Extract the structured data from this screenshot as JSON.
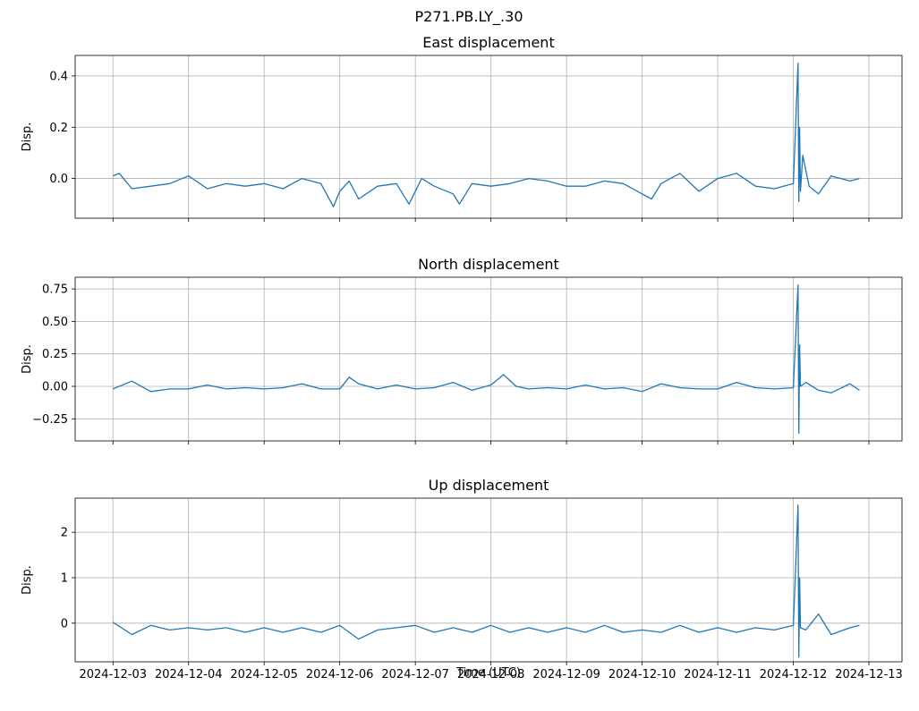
{
  "figure": {
    "title": "P271.PB.LY_.30",
    "xlabel": "Time (UTC)"
  },
  "colors": {
    "series": "#1f77b4",
    "grid": "#b0b0b0",
    "axis": "#000000"
  },
  "x_ticks": [
    "2024-12-03",
    "2024-12-04",
    "2024-12-05",
    "2024-12-06",
    "2024-12-07",
    "2024-12-08",
    "2024-12-09",
    "2024-12-10",
    "2024-12-11",
    "2024-12-12",
    "2024-12-13"
  ],
  "chart_data": [
    {
      "type": "line",
      "title": "East displacement",
      "ylabel": "Disp.",
      "xlim": [
        "2024-12-02T12:00",
        "2024-12-13T10:30"
      ],
      "ylim": [
        -0.155,
        0.48
      ],
      "y_ticks": [
        0.0,
        0.2,
        0.4
      ],
      "y_tick_labels": [
        "0.0",
        "0.2",
        "0.4"
      ],
      "grid": true,
      "series": [
        {
          "x": [
            "2024-12-03T00:00",
            "2024-12-03T02:00",
            "2024-12-03T06:00",
            "2024-12-03T12:00",
            "2024-12-03T18:00",
            "2024-12-04T00:00",
            "2024-12-04T06:00",
            "2024-12-04T12:00",
            "2024-12-04T18:00",
            "2024-12-05T00:00",
            "2024-12-05T06:00",
            "2024-12-05T12:00",
            "2024-12-05T18:00",
            "2024-12-05T22:00",
            "2024-12-06T00:00",
            "2024-12-06T03:00",
            "2024-12-06T06:00",
            "2024-12-06T12:00",
            "2024-12-06T18:00",
            "2024-12-06T22:00",
            "2024-12-07T02:00",
            "2024-12-07T06:00",
            "2024-12-07T12:00",
            "2024-12-07T14:00",
            "2024-12-07T18:00",
            "2024-12-08T00:00",
            "2024-12-08T06:00",
            "2024-12-08T12:00",
            "2024-12-08T18:00",
            "2024-12-09T00:00",
            "2024-12-09T06:00",
            "2024-12-09T12:00",
            "2024-12-09T18:00",
            "2024-12-10T00:00",
            "2024-12-10T03:00",
            "2024-12-10T06:00",
            "2024-12-10T12:00",
            "2024-12-10T18:00",
            "2024-12-11T00:00",
            "2024-12-11T06:00",
            "2024-12-11T12:00",
            "2024-12-11T18:00",
            "2024-12-12T00:00",
            "2024-12-12T01:30",
            "2024-12-12T01:45",
            "2024-12-12T02:00",
            "2024-12-12T02:15",
            "2024-12-12T03:00",
            "2024-12-12T05:00",
            "2024-12-12T08:00",
            "2024-12-12T12:00",
            "2024-12-12T18:00",
            "2024-12-12T21:00"
          ],
          "y": [
            0.01,
            0.02,
            -0.04,
            -0.03,
            -0.02,
            0.01,
            -0.04,
            -0.02,
            -0.03,
            -0.02,
            -0.04,
            0.0,
            -0.02,
            -0.11,
            -0.05,
            -0.01,
            -0.08,
            -0.03,
            -0.02,
            -0.1,
            0.0,
            -0.03,
            -0.06,
            -0.1,
            -0.02,
            -0.03,
            -0.02,
            0.0,
            -0.01,
            -0.03,
            -0.03,
            -0.01,
            -0.02,
            -0.06,
            -0.08,
            -0.02,
            0.02,
            -0.05,
            0.0,
            0.02,
            -0.03,
            -0.04,
            -0.02,
            0.45,
            -0.09,
            0.2,
            -0.05,
            0.09,
            -0.03,
            -0.06,
            0.01,
            -0.01,
            0.0
          ]
        }
      ]
    },
    {
      "type": "line",
      "title": "North displacement",
      "ylabel": "Disp.",
      "xlim": [
        "2024-12-02T12:00",
        "2024-12-13T10:30"
      ],
      "ylim": [
        -0.42,
        0.84
      ],
      "y_ticks": [
        -0.25,
        0.0,
        0.25,
        0.5,
        0.75
      ],
      "y_tick_labels": [
        "−0.25",
        "0.00",
        "0.25",
        "0.50",
        "0.75"
      ],
      "grid": true,
      "series": [
        {
          "x": [
            "2024-12-03T00:00",
            "2024-12-03T06:00",
            "2024-12-03T12:00",
            "2024-12-03T18:00",
            "2024-12-04T00:00",
            "2024-12-04T06:00",
            "2024-12-04T12:00",
            "2024-12-04T18:00",
            "2024-12-05T00:00",
            "2024-12-05T06:00",
            "2024-12-05T12:00",
            "2024-12-05T18:00",
            "2024-12-06T00:00",
            "2024-12-06T03:00",
            "2024-12-06T06:00",
            "2024-12-06T12:00",
            "2024-12-06T18:00",
            "2024-12-07T00:00",
            "2024-12-07T06:00",
            "2024-12-07T12:00",
            "2024-12-07T18:00",
            "2024-12-08T00:00",
            "2024-12-08T04:00",
            "2024-12-08T08:00",
            "2024-12-08T12:00",
            "2024-12-08T18:00",
            "2024-12-09T00:00",
            "2024-12-09T06:00",
            "2024-12-09T12:00",
            "2024-12-09T18:00",
            "2024-12-10T00:00",
            "2024-12-10T06:00",
            "2024-12-10T12:00",
            "2024-12-10T18:00",
            "2024-12-11T00:00",
            "2024-12-11T06:00",
            "2024-12-11T12:00",
            "2024-12-11T18:00",
            "2024-12-12T00:00",
            "2024-12-12T01:30",
            "2024-12-12T01:45",
            "2024-12-12T02:00",
            "2024-12-12T02:15",
            "2024-12-12T04:00",
            "2024-12-12T08:00",
            "2024-12-12T12:00",
            "2024-12-12T18:00",
            "2024-12-12T21:00"
          ],
          "y": [
            -0.02,
            0.04,
            -0.04,
            -0.02,
            -0.02,
            0.01,
            -0.02,
            -0.01,
            -0.02,
            -0.01,
            0.02,
            -0.02,
            -0.02,
            0.07,
            0.02,
            -0.02,
            0.01,
            -0.02,
            -0.01,
            0.03,
            -0.03,
            0.01,
            0.09,
            0.0,
            -0.02,
            -0.01,
            -0.02,
            0.01,
            -0.02,
            -0.01,
            -0.04,
            0.02,
            -0.01,
            -0.02,
            -0.02,
            0.03,
            -0.01,
            -0.02,
            -0.01,
            0.78,
            -0.36,
            0.32,
            0.0,
            0.03,
            -0.03,
            -0.05,
            0.02,
            -0.03
          ]
        }
      ]
    },
    {
      "type": "line",
      "title": "Up displacement",
      "ylabel": "Disp.",
      "xlim": [
        "2024-12-02T12:00",
        "2024-12-13T10:30"
      ],
      "ylim": [
        -0.85,
        2.75
      ],
      "y_ticks": [
        0,
        1,
        2
      ],
      "y_tick_labels": [
        "0",
        "1",
        "2"
      ],
      "grid": true,
      "series": [
        {
          "x": [
            "2024-12-03T00:00",
            "2024-12-03T06:00",
            "2024-12-03T12:00",
            "2024-12-03T18:00",
            "2024-12-04T00:00",
            "2024-12-04T06:00",
            "2024-12-04T12:00",
            "2024-12-04T18:00",
            "2024-12-05T00:00",
            "2024-12-05T06:00",
            "2024-12-05T12:00",
            "2024-12-05T18:00",
            "2024-12-06T00:00",
            "2024-12-06T06:00",
            "2024-12-06T12:00",
            "2024-12-06T18:00",
            "2024-12-07T00:00",
            "2024-12-07T06:00",
            "2024-12-07T12:00",
            "2024-12-07T18:00",
            "2024-12-08T00:00",
            "2024-12-08T06:00",
            "2024-12-08T12:00",
            "2024-12-08T18:00",
            "2024-12-09T00:00",
            "2024-12-09T06:00",
            "2024-12-09T12:00",
            "2024-12-09T18:00",
            "2024-12-10T00:00",
            "2024-12-10T06:00",
            "2024-12-10T12:00",
            "2024-12-10T18:00",
            "2024-12-11T00:00",
            "2024-12-11T06:00",
            "2024-12-11T12:00",
            "2024-12-11T18:00",
            "2024-12-12T00:00",
            "2024-12-12T01:30",
            "2024-12-12T01:45",
            "2024-12-12T02:00",
            "2024-12-12T02:15",
            "2024-12-12T04:00",
            "2024-12-12T08:00",
            "2024-12-12T12:00",
            "2024-12-12T18:00",
            "2024-12-12T21:00"
          ],
          "y": [
            0.02,
            -0.25,
            -0.05,
            -0.15,
            -0.1,
            -0.15,
            -0.1,
            -0.2,
            -0.1,
            -0.2,
            -0.1,
            -0.2,
            -0.05,
            -0.35,
            -0.15,
            -0.1,
            -0.05,
            -0.2,
            -0.1,
            -0.2,
            -0.05,
            -0.2,
            -0.1,
            -0.2,
            -0.1,
            -0.2,
            -0.05,
            -0.2,
            -0.15,
            -0.2,
            -0.05,
            -0.2,
            -0.1,
            -0.2,
            -0.1,
            -0.15,
            -0.05,
            2.6,
            -0.75,
            1.0,
            -0.1,
            -0.15,
            0.2,
            -0.25,
            -0.1,
            -0.05
          ]
        }
      ]
    }
  ]
}
